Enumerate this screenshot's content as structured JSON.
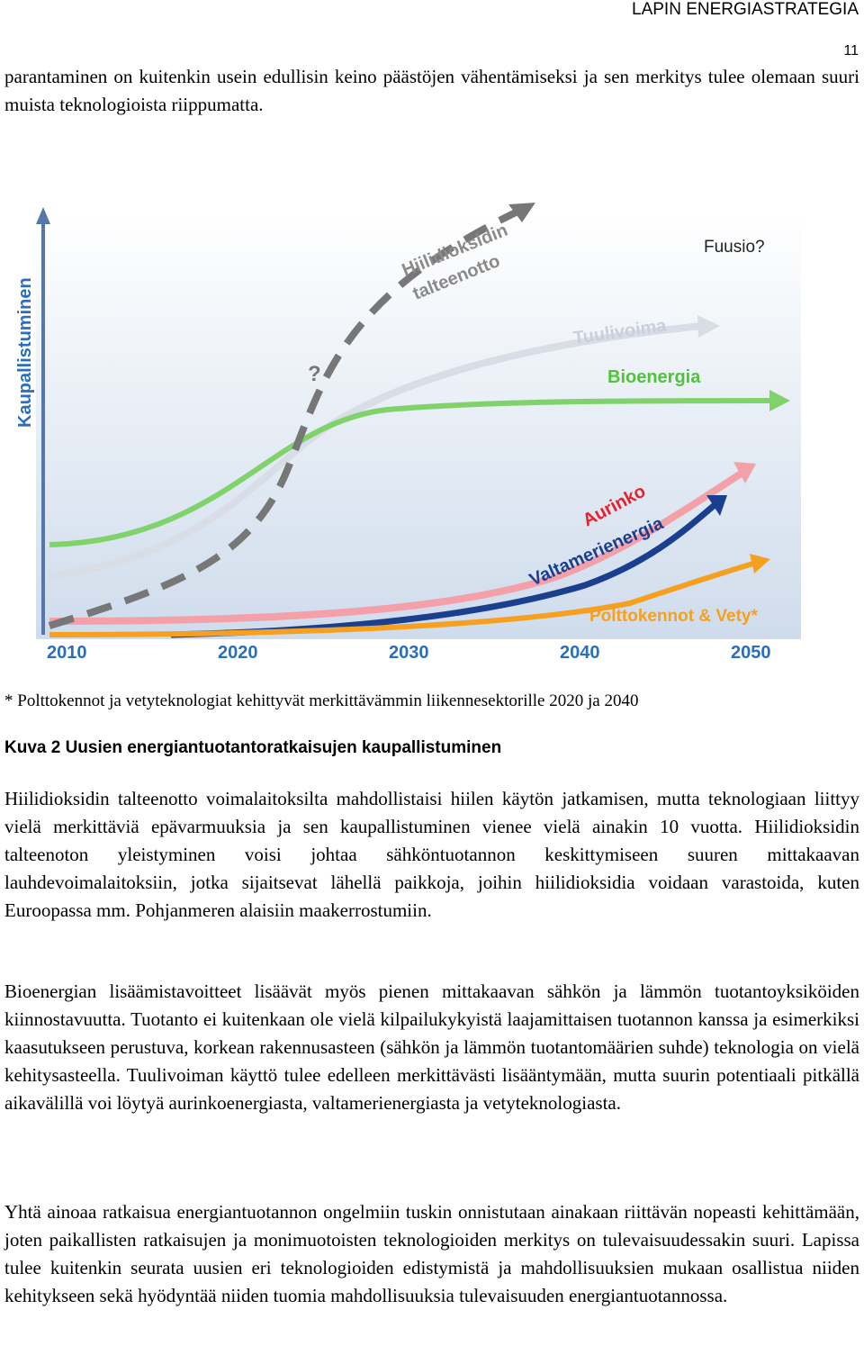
{
  "header": {
    "title": "LAPIN ENERGIASTRATEGIA",
    "page_number": "11"
  },
  "intro_paragraph": "parantaminen on kuitenkin usein edullisin keino päästöjen vähentämiseksi ja sen merkitys tulee olemaan suuri muista teknologioista riippumatta.",
  "figure": {
    "y_axis_label": "Kaupallistuminen",
    "x_labels": [
      "2010",
      "2020",
      "2030",
      "2040",
      "2050"
    ],
    "curve_labels": {
      "ccs_line1": "Hiilidioksidin",
      "ccs_line2": "talteenotto",
      "question": "?",
      "fusion": "Fuusio?",
      "wind": "Tuulivoima",
      "bio": "Bioenergia",
      "solar": "Aurinko",
      "ocean": "Valtamerienergia",
      "fuel_cells": "Polttokennot & Vety*"
    },
    "footnote": "* Polttokennot ja vetyteknologiat kehittyvät merkittävämmin liikennesektorille 2020 ja 2040",
    "caption": "Kuva 2 Uusien energiantuotantoratkaisujen kaupallistuminen"
  },
  "paragraphs": [
    "Hiilidioksidin talteenotto voimalaitoksilta mahdollistaisi hiilen käytön jatkamisen, mutta teknologiaan liittyy vielä merkittäviä epävarmuuksia ja sen kaupallistuminen vienee vielä ainakin 10 vuotta. Hiilidioksidin talteenoton yleistyminen voisi johtaa sähköntuotannon keskittymiseen suuren mittakaavan lauhdevoimalaitoksiin, jotka sijaitsevat lähellä paikkoja, joihin hiilidioksidia voidaan varastoida, kuten Euroopassa mm. Pohjanmeren alaisiin maakerrostumiin.",
    "Bioenergian lisäämistavoitteet lisäävät myös pienen mittakaavan sähkön ja lämmön tuotantoyksiköiden kiinnostavuutta. Tuotanto ei kuitenkaan ole vielä kilpailukykyistä laajamittaisen tuotannon kanssa ja esimerkiksi kaasutukseen perustuva, korkean rakennusasteen (sähkön ja lämmön tuotantomäärien suhde) teknologia on vielä kehitysasteella. Tuulivoiman käyttö tulee edelleen merkittävästi lisääntymään, mutta suurin potentiaali pitkällä aikavälillä voi löytyä aurinkoenergiasta, valtamerienergiasta ja vetyteknologiasta.",
    "Yhtä ainoaa ratkaisua energiantuotannon ongelmiin tuskin onnistutaan ainakaan riittävän nopeasti kehittämään, joten paikallisten ratkaisujen ja monimuotoisten teknologioiden merkitys on tulevaisuudessakin suuri. Lapissa tulee kuitenkin seurata uusien eri teknologioiden edistymistä ja mahdollisuuksien mukaan osallistua niiden kehitykseen sekä hyödyntää niiden tuomia mahdollisuuksia tulevaisuuden energiantuotannossa."
  ]
}
